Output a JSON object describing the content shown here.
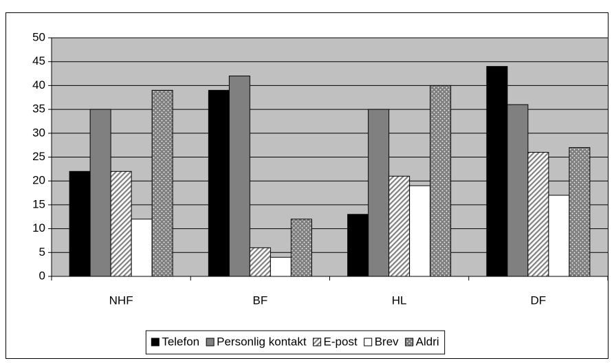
{
  "chart_data": {
    "type": "bar",
    "categories": [
      "NHF",
      "BF",
      "HL",
      "DF"
    ],
    "series": [
      {
        "name": "Telefon",
        "color": "#000000",
        "values": [
          22,
          39,
          13,
          44
        ]
      },
      {
        "name": "Personlig kontakt",
        "color": "#808080",
        "values": [
          35,
          42,
          35,
          36
        ]
      },
      {
        "name": "E-post",
        "color": "#808080",
        "pattern": "hatch",
        "values": [
          22,
          6,
          21,
          26
        ]
      },
      {
        "name": "Brev",
        "color": "#ffffff",
        "values": [
          12,
          4,
          19,
          17
        ]
      },
      {
        "name": "Aldri",
        "color": "#808080",
        "pattern": "dots",
        "values": [
          39,
          12,
          40,
          27
        ]
      }
    ],
    "ylim": [
      0,
      50
    ],
    "yticks": [
      0,
      5,
      10,
      15,
      20,
      25,
      30,
      35,
      40,
      45,
      50
    ],
    "grid": true,
    "legend": "bottom",
    "plot_background": "#c0c0c0"
  }
}
